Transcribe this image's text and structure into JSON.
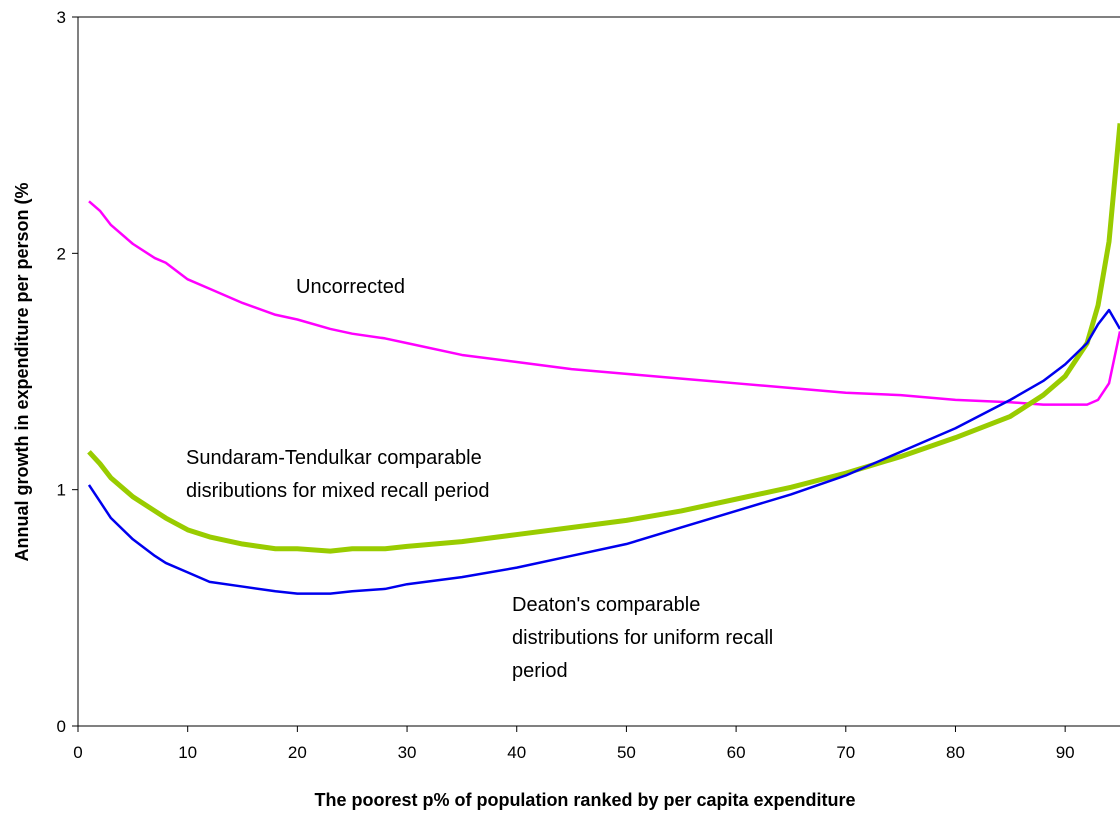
{
  "chart_data": {
    "type": "line",
    "xlabel": "The poorest p% of population ranked by per capita expenditure",
    "ylabel": "Annual growth in expenditure per person (%",
    "x": [
      1,
      2,
      3,
      5,
      7,
      8,
      10,
      12,
      15,
      18,
      20,
      23,
      25,
      28,
      30,
      35,
      40,
      45,
      50,
      55,
      60,
      65,
      70,
      75,
      80,
      85,
      88,
      90,
      92,
      93,
      94,
      95
    ],
    "series": [
      {
        "name": "Uncorrected",
        "color": "#ff00ff",
        "width": 2.5,
        "values": [
          2.22,
          2.18,
          2.12,
          2.04,
          1.98,
          1.96,
          1.89,
          1.85,
          1.79,
          1.74,
          1.72,
          1.68,
          1.66,
          1.64,
          1.62,
          1.57,
          1.54,
          1.51,
          1.49,
          1.47,
          1.45,
          1.43,
          1.41,
          1.4,
          1.38,
          1.37,
          1.36,
          1.36,
          1.36,
          1.38,
          1.45,
          1.67
        ]
      },
      {
        "name": "Sundaram-Tendulkar",
        "color": "#99cc00",
        "width": 5,
        "values": [
          1.16,
          1.11,
          1.05,
          0.97,
          0.91,
          0.88,
          0.83,
          0.8,
          0.77,
          0.75,
          0.75,
          0.74,
          0.75,
          0.75,
          0.76,
          0.78,
          0.81,
          0.84,
          0.87,
          0.91,
          0.96,
          1.01,
          1.07,
          1.14,
          1.22,
          1.31,
          1.4,
          1.48,
          1.62,
          1.78,
          2.05,
          2.55
        ]
      },
      {
        "name": "Deaton",
        "color": "#0000ee",
        "width": 2.5,
        "values": [
          1.02,
          0.95,
          0.88,
          0.79,
          0.72,
          0.69,
          0.65,
          0.61,
          0.59,
          0.57,
          0.56,
          0.56,
          0.57,
          0.58,
          0.6,
          0.63,
          0.67,
          0.72,
          0.77,
          0.84,
          0.91,
          0.98,
          1.06,
          1.16,
          1.26,
          1.38,
          1.46,
          1.53,
          1.62,
          1.7,
          1.76,
          1.68
        ]
      }
    ],
    "annotations": [
      [
        "Uncorrected"
      ],
      [
        "Sundaram-Tendulkar comparable",
        "disributions for mixed recall period"
      ],
      [
        "Deaton's comparable",
        "distributions for uniform recall",
        "period"
      ]
    ],
    "xlim": [
      0,
      95
    ],
    "ylim": [
      0,
      3
    ],
    "xticks": [
      0,
      10,
      20,
      30,
      40,
      50,
      60,
      70,
      80,
      90
    ],
    "yticks": [
      0,
      1,
      2,
      3
    ]
  }
}
